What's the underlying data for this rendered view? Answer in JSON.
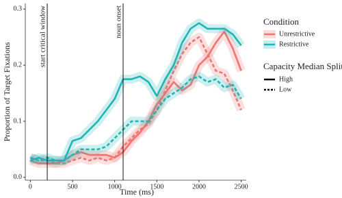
{
  "chart_data": {
    "type": "line",
    "x_label": "Time (ms)",
    "y_label": "Proportion of Target Fixations",
    "x": [
      0,
      100,
      200,
      300,
      400,
      500,
      600,
      700,
      800,
      900,
      1000,
      1100,
      1200,
      1300,
      1400,
      1500,
      1600,
      1700,
      1800,
      1900,
      2000,
      2100,
      2200,
      2300,
      2400,
      2500
    ],
    "series": [
      {
        "color": "#f07470",
        "dash": "solid",
        "values": [
          0.03,
          0.025,
          0.025,
          0.025,
          0.03,
          0.04,
          0.045,
          0.04,
          0.04,
          0.04,
          0.035,
          0.045,
          0.065,
          0.08,
          0.1,
          0.13,
          0.15,
          0.17,
          0.155,
          0.165,
          0.2,
          0.215,
          0.24,
          0.26,
          0.23,
          0.19
        ]
      },
      {
        "color": "#f07470",
        "dash": "dashed",
        "values": [
          0.035,
          0.03,
          0.03,
          0.025,
          0.025,
          0.03,
          0.035,
          0.03,
          0.035,
          0.03,
          0.035,
          0.055,
          0.07,
          0.085,
          0.095,
          0.12,
          0.155,
          0.19,
          0.22,
          0.24,
          0.25,
          0.22,
          0.19,
          0.185,
          0.155,
          0.12
        ]
      },
      {
        "color": "#1fb5b5",
        "dash": "solid",
        "values": [
          0.03,
          0.035,
          0.03,
          0.03,
          0.03,
          0.065,
          0.07,
          0.085,
          0.1,
          0.12,
          0.14,
          0.175,
          0.175,
          0.18,
          0.17,
          0.145,
          0.175,
          0.2,
          0.24,
          0.265,
          0.275,
          0.265,
          0.265,
          0.265,
          0.255,
          0.235
        ]
      },
      {
        "color": "#1fb5b5",
        "dash": "dashed",
        "values": [
          0.035,
          0.03,
          0.035,
          0.03,
          0.03,
          0.04,
          0.05,
          0.05,
          0.05,
          0.055,
          0.07,
          0.085,
          0.1,
          0.1,
          0.1,
          0.12,
          0.14,
          0.15,
          0.16,
          0.175,
          0.18,
          0.17,
          0.175,
          0.16,
          0.165,
          0.14
        ]
      }
    ],
    "vlines": [
      {
        "x": 200,
        "label": "start critical window"
      },
      {
        "x": 1100,
        "label": "noun onset"
      }
    ],
    "xlim": [
      -60,
      2560
    ],
    "ylim": [
      -0.005,
      0.31
    ],
    "xticks": [
      0,
      500,
      1000,
      1500,
      2000,
      2500
    ],
    "yticks": [
      {
        "value": 0,
        "label": "0.0"
      },
      0.1,
      0.2,
      0.3
    ],
    "legend": {
      "color": {
        "title": "Condition",
        "entries": [
          {
            "label": "Unrestrictive",
            "color": "#f07470"
          },
          {
            "label": "Restrictive",
            "color": "#1fb5b5"
          }
        ]
      },
      "linetype": {
        "title": "Capacity Median Split",
        "entries": [
          {
            "label": "High",
            "dash": "solid"
          },
          {
            "label": "Low",
            "dash": "dashed"
          }
        ]
      }
    }
  }
}
